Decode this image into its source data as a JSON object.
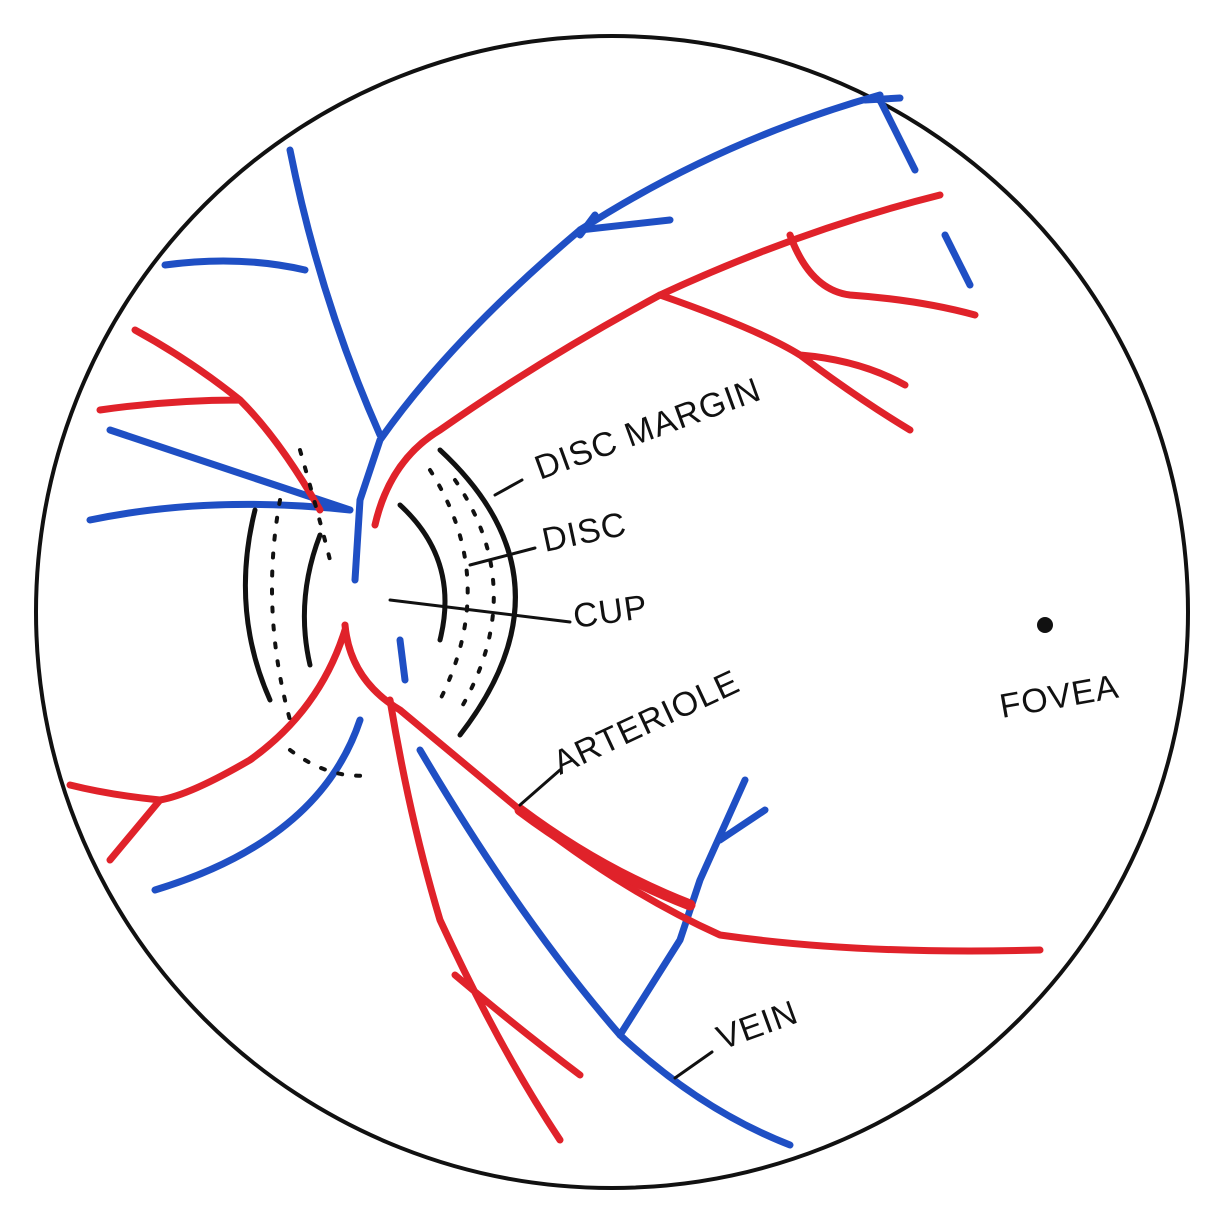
{
  "labels": {
    "disc_margin": "DISC MARGIN",
    "disc": "DISC",
    "cup": "CUP",
    "arteriole": "ARTERIOLE",
    "vein": "VEIN",
    "fovea": "FOVEA"
  }
}
